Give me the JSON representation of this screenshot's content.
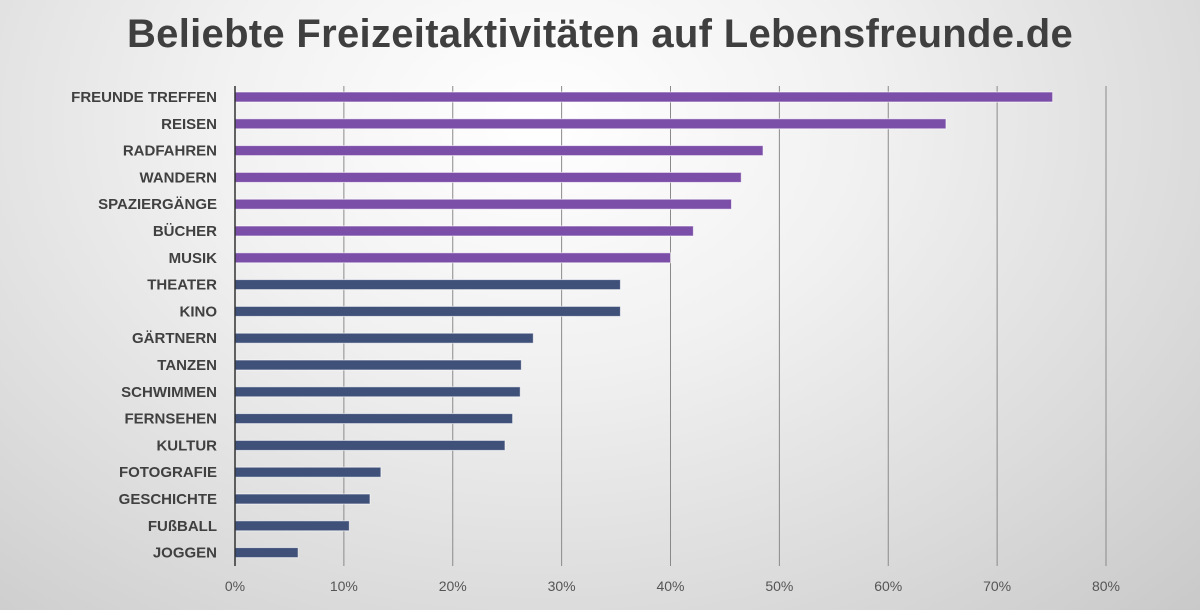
{
  "chart_data": {
    "type": "bar",
    "orientation": "horizontal",
    "title": "Beliebte Freizeitaktivitäten auf Lebensfreunde.de",
    "categories": [
      "FREUNDE TREFFEN",
      "REISEN",
      "RADFAHREN",
      "WANDERN",
      "SPAZIERGÄNGE",
      "BÜCHER",
      "MUSIK",
      "THEATER",
      "KINO",
      "GÄRTNERN",
      "TANZEN",
      "SCHWIMMEN",
      "FERNSEHEN",
      "KULTUR",
      "FOTOGRAFIE",
      "GESCHICHTE",
      "FUßBALL",
      "JOGGEN"
    ],
    "values": [
      75.1,
      65.3,
      48.5,
      46.5,
      45.6,
      42.1,
      40.0,
      35.4,
      35.4,
      27.4,
      26.3,
      26.2,
      25.5,
      24.8,
      13.4,
      12.4,
      10.5,
      5.8
    ],
    "unit": "%",
    "xlim": [
      0,
      80
    ],
    "xticks": [
      "0%",
      "10%",
      "20%",
      "30%",
      "40%",
      "50%",
      "60%",
      "70%",
      "80%"
    ],
    "grid": "vertical",
    "bar_colors": {
      "top7": "#7b4ea8",
      "rest": "#3f5079"
    },
    "xlabel": "",
    "ylabel": ""
  }
}
